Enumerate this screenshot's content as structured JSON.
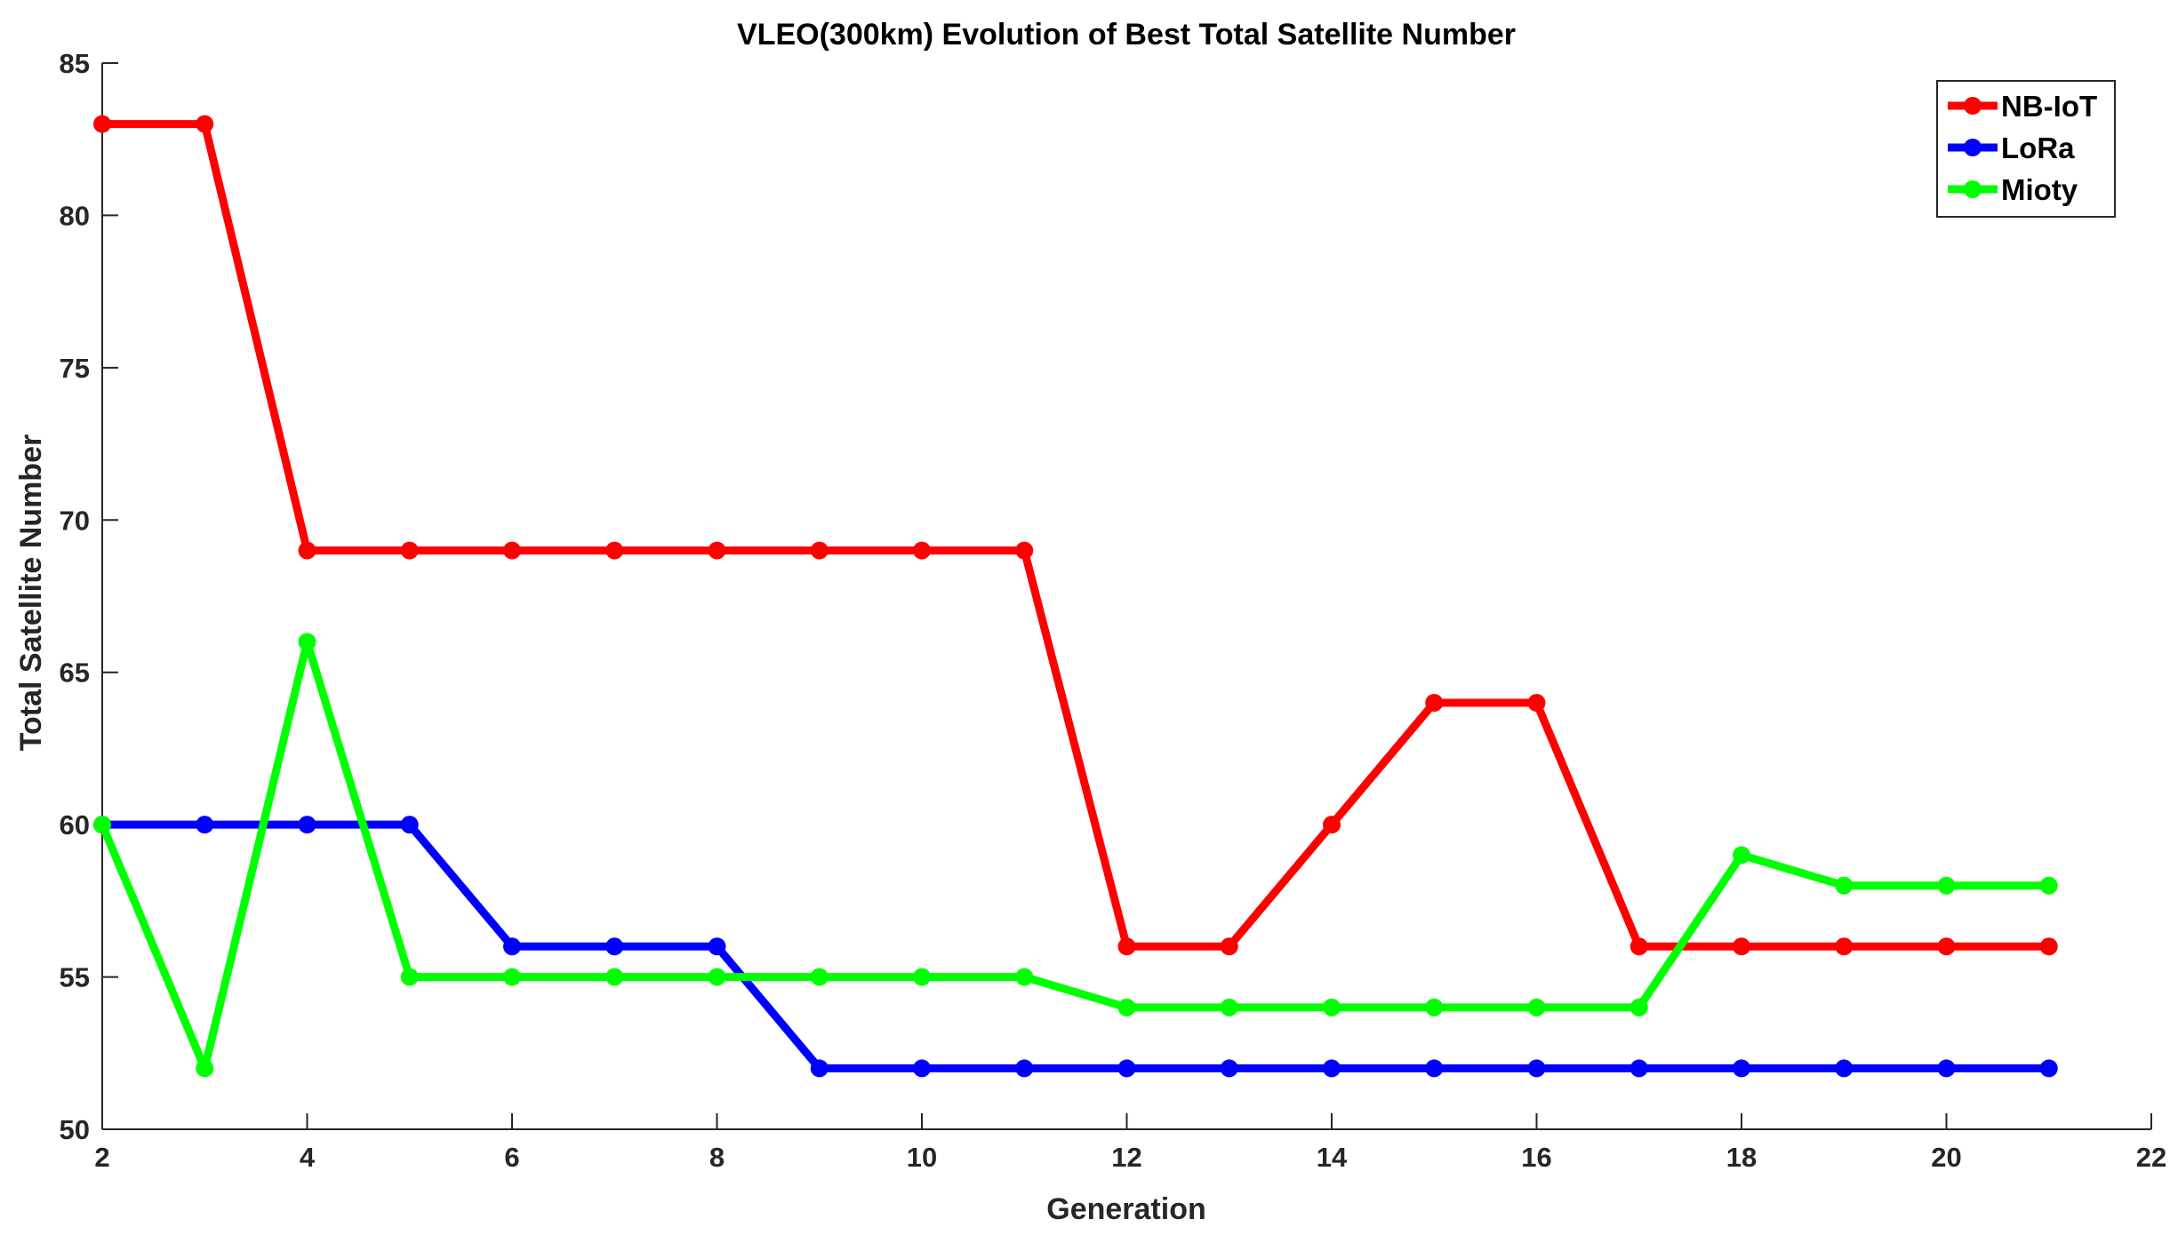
{
  "chart_data": {
    "type": "line",
    "title": "VLEO(300km) Evolution of Best Total Satellite Number",
    "xlabel": "Generation",
    "ylabel": "Total Satellite Number",
    "xlim": [
      2,
      22
    ],
    "ylim": [
      50,
      85
    ],
    "xticks": [
      2,
      4,
      6,
      8,
      10,
      12,
      14,
      16,
      18,
      20,
      22
    ],
    "yticks": [
      50,
      55,
      60,
      65,
      70,
      75,
      80,
      85
    ],
    "x": [
      2,
      3,
      4,
      5,
      6,
      7,
      8,
      9,
      10,
      11,
      12,
      13,
      14,
      15,
      16,
      17,
      18,
      19,
      20,
      21
    ],
    "grid": false,
    "legend_position": "top-right",
    "series": [
      {
        "name": "NB-IoT",
        "color": "#ff0000",
        "values": [
          83,
          83,
          69,
          69,
          69,
          69,
          69,
          69,
          69,
          69,
          56,
          56,
          60,
          64,
          64,
          56,
          56,
          56,
          56,
          56
        ]
      },
      {
        "name": "LoRa",
        "color": "#0000ff",
        "values": [
          60,
          60,
          60,
          60,
          56,
          56,
          56,
          52,
          52,
          52,
          52,
          52,
          52,
          52,
          52,
          52,
          52,
          52,
          52,
          52
        ]
      },
      {
        "name": "Mioty",
        "color": "#00ff00",
        "values": [
          60,
          52,
          66,
          55,
          55,
          55,
          55,
          55,
          55,
          55,
          54,
          54,
          54,
          54,
          54,
          54,
          59,
          58,
          58,
          58
        ]
      }
    ]
  }
}
